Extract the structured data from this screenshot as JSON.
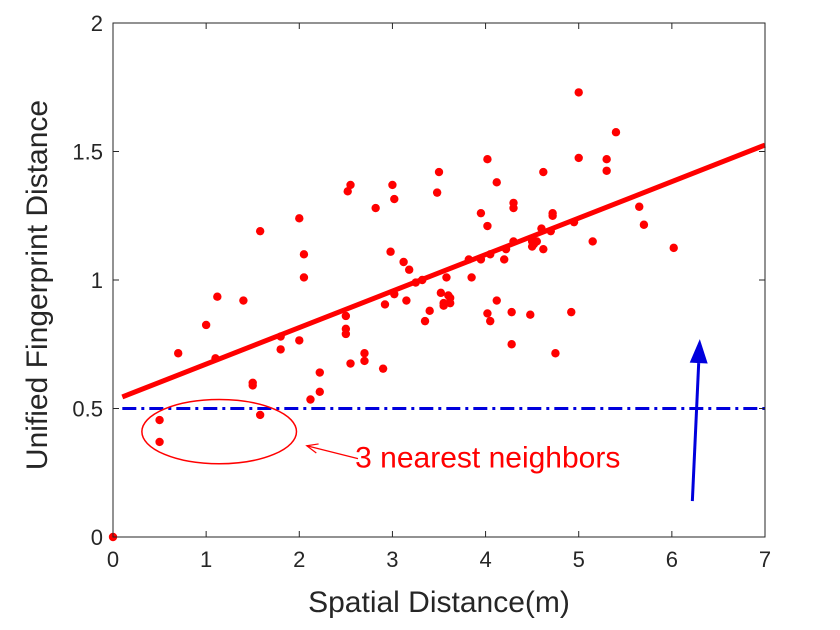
{
  "chart_data": {
    "type": "scatter",
    "title": "",
    "xlabel": "Spatial Distance(m)",
    "ylabel": "Unified Fingerprint Distance",
    "xlim": [
      0,
      7
    ],
    "ylim": [
      0,
      2
    ],
    "xticks": [
      "0",
      "1",
      "2",
      "3",
      "4",
      "5",
      "6",
      "7"
    ],
    "yticks": [
      "0",
      "0.5",
      "1",
      "1.5",
      "2"
    ],
    "grid": false,
    "legend": "none",
    "colors": {
      "points": "#ff0000",
      "fit_line": "#ff0000",
      "threshold": "#0000dd",
      "arrow": "#0000dd",
      "axes": "#262626"
    },
    "points": {
      "x": [
        0,
        0.5,
        0.5,
        1.58,
        0.7,
        1.0,
        1.1,
        1.12,
        1.4,
        1.5,
        1.5,
        1.58,
        1.8,
        1.8,
        2.0,
        2.0,
        2.05,
        2.05,
        2.12,
        2.22,
        2.22,
        2.5,
        2.5,
        2.5,
        2.52,
        2.55,
        2.55,
        2.7,
        2.7,
        2.82,
        2.9,
        2.92,
        2.98,
        3.0,
        3.02,
        3.02,
        3.12,
        3.15,
        3.18,
        3.25,
        3.32,
        3.35,
        3.4,
        3.48,
        3.5,
        3.52,
        3.55,
        3.55,
        3.58,
        3.6,
        3.62,
        3.62,
        3.82,
        3.85,
        3.95,
        3.95,
        4.02,
        4.02,
        4.02,
        4.05,
        4.05,
        4.12,
        4.12,
        4.2,
        4.22,
        4.28,
        4.28,
        4.3,
        4.3,
        4.3,
        4.48,
        4.5,
        4.5,
        4.52,
        4.55,
        4.6,
        4.62,
        4.62,
        4.7,
        4.72,
        4.72,
        4.75,
        4.92,
        4.95,
        5.0,
        5.0,
        5.15,
        5.3,
        5.3,
        5.4,
        5.65,
        5.7,
        6.02
      ],
      "y": [
        0,
        0.455,
        0.37,
        0.475,
        0.715,
        0.825,
        0.695,
        0.935,
        0.92,
        0.6,
        0.59,
        1.19,
        0.78,
        0.73,
        1.24,
        0.765,
        1.01,
        1.1,
        0.535,
        0.565,
        0.64,
        0.86,
        0.81,
        0.79,
        1.345,
        1.37,
        0.675,
        0.715,
        0.685,
        1.28,
        0.655,
        0.905,
        1.11,
        1.37,
        1.315,
        0.945,
        1.07,
        0.92,
        1.04,
        0.99,
        1.0,
        0.84,
        0.88,
        1.34,
        1.42,
        0.95,
        0.91,
        0.9,
        1.01,
        0.94,
        0.93,
        0.91,
        1.08,
        1.01,
        1.26,
        1.08,
        1.47,
        1.21,
        0.87,
        1.1,
        0.84,
        1.38,
        0.92,
        1.08,
        1.12,
        0.875,
        0.75,
        1.3,
        1.28,
        1.15,
        0.865,
        1.15,
        1.13,
        1.14,
        1.15,
        1.2,
        1.12,
        1.42,
        1.19,
        1.25,
        1.26,
        0.715,
        0.875,
        1.225,
        1.73,
        1.475,
        1.15,
        1.47,
        1.425,
        1.575,
        1.285,
        1.215,
        1.125
      ]
    },
    "fit_line": {
      "x": [
        0.1,
        7.0
      ],
      "y": [
        0.545,
        1.525
      ]
    },
    "threshold_line": {
      "y": 0.5,
      "x": [
        0.1,
        7.0
      ]
    },
    "arrow": {
      "x": [
        6.22,
        6.3
      ],
      "y": [
        0.14,
        0.77
      ]
    },
    "highlight_ellipse": {
      "cx": 1.14,
      "cy": 0.41,
      "rx": 0.83,
      "ry": 0.125
    },
    "annotation": {
      "text": "3 nearest neighbors",
      "text_x": 2.6,
      "text_y": 0.27,
      "arrow_from": [
        2.63,
        0.305
      ],
      "arrow_to": [
        2.08,
        0.355
      ]
    }
  }
}
